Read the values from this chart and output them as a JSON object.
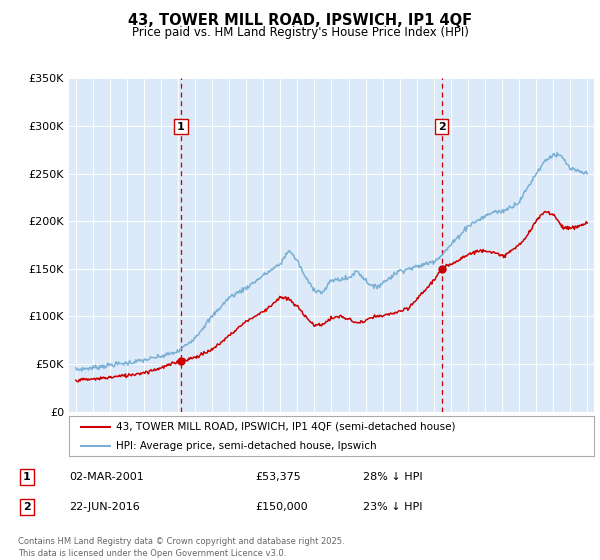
{
  "title": "43, TOWER MILL ROAD, IPSWICH, IP1 4QF",
  "subtitle": "Price paid vs. HM Land Registry's House Price Index (HPI)",
  "legend_line1": "43, TOWER MILL ROAD, IPSWICH, IP1 4QF (semi-detached house)",
  "legend_line2": "HPI: Average price, semi-detached house, Ipswich",
  "sale1_date": "02-MAR-2001",
  "sale1_price": "£53,375",
  "sale1_hpi": "28% ↓ HPI",
  "sale2_date": "22-JUN-2016",
  "sale2_price": "£150,000",
  "sale2_hpi": "23% ↓ HPI",
  "footer": "Contains HM Land Registry data © Crown copyright and database right 2025.\nThis data is licensed under the Open Government Licence v3.0.",
  "plot_bg_color": "#dce9f8",
  "red_color": "#cc0000",
  "blue_color": "#7ab0d4",
  "ylim": [
    0,
    350000
  ],
  "yticks": [
    0,
    50000,
    100000,
    150000,
    200000,
    250000,
    300000,
    350000
  ],
  "sale1_year": 2001.17,
  "sale1_value": 53375,
  "sale2_year": 2016.47,
  "sale2_value": 150000,
  "xstart": 1995,
  "xend": 2025
}
